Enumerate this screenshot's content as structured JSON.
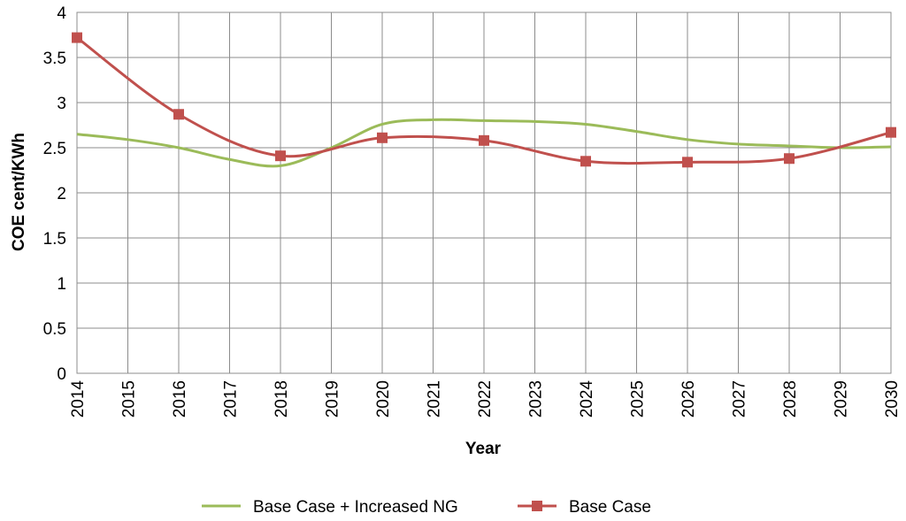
{
  "chart_data": {
    "type": "line",
    "title": "",
    "xlabel": "Year",
    "ylabel": "COE cent/KWh",
    "ylim": [
      0,
      4
    ],
    "yticks": [
      "0",
      "0.5",
      "1",
      "1.5",
      "2",
      "2.5",
      "3",
      "3.5",
      "4"
    ],
    "categories": [
      "2014",
      "2015",
      "2016",
      "2017",
      "2018",
      "2019",
      "2020",
      "2021",
      "2022",
      "2023",
      "2024",
      "2025",
      "2026",
      "2027",
      "2028",
      "2029",
      "2030"
    ],
    "grid": true,
    "legend_position": "bottom",
    "series": [
      {
        "name": "Base Case + Increased NG",
        "color": "#9BBB59",
        "markers": false,
        "x": [
          "2014",
          "2015",
          "2016",
          "2017",
          "2018",
          "2019",
          "2020",
          "2021",
          "2022",
          "2023",
          "2024",
          "2025",
          "2026",
          "2027",
          "2028",
          "2029",
          "2030"
        ],
        "values": [
          2.65,
          2.59,
          2.5,
          2.37,
          2.3,
          2.5,
          2.76,
          2.81,
          2.8,
          2.79,
          2.76,
          2.68,
          2.59,
          2.54,
          2.52,
          2.5,
          2.51
        ]
      },
      {
        "name": "Base Case",
        "color": "#C0504D",
        "markers": true,
        "x": [
          "2014",
          "2016",
          "2018",
          "2020",
          "2022",
          "2024",
          "2026",
          "2028",
          "2030"
        ],
        "values": [
          3.72,
          2.87,
          2.41,
          2.61,
          2.58,
          2.35,
          2.34,
          2.38,
          2.67
        ]
      }
    ]
  }
}
